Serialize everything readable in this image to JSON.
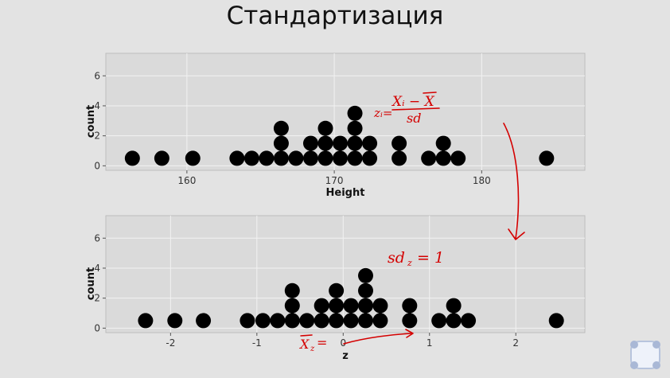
{
  "slide": {
    "title": "Стандартизация"
  },
  "chart_data": [
    {
      "type": "dotplot",
      "xlabel": "Height",
      "ylabel": "count",
      "xlim": [
        154.5,
        187
      ],
      "ylim": [
        -0.3,
        7.5
      ],
      "xticks": [
        160,
        170,
        180
      ],
      "yticks": [
        0,
        2,
        4,
        6
      ],
      "grid": true,
      "stacks": [
        {
          "x": 156.3,
          "count": 1
        },
        {
          "x": 158.3,
          "count": 1
        },
        {
          "x": 160.4,
          "count": 1
        },
        {
          "x": 163.4,
          "count": 1
        },
        {
          "x": 164.4,
          "count": 1
        },
        {
          "x": 165.4,
          "count": 1
        },
        {
          "x": 166.4,
          "count": 3
        },
        {
          "x": 167.4,
          "count": 1
        },
        {
          "x": 168.4,
          "count": 2
        },
        {
          "x": 169.4,
          "count": 3
        },
        {
          "x": 170.4,
          "count": 2
        },
        {
          "x": 171.4,
          "count": 4
        },
        {
          "x": 172.4,
          "count": 2
        },
        {
          "x": 174.4,
          "count": 2
        },
        {
          "x": 176.4,
          "count": 1
        },
        {
          "x": 177.4,
          "count": 2
        },
        {
          "x": 178.4,
          "count": 1
        },
        {
          "x": 184.4,
          "count": 1
        }
      ]
    },
    {
      "type": "dotplot",
      "xlabel": "z",
      "ylabel": "count",
      "xlim": [
        -2.75,
        2.8
      ],
      "ylim": [
        -0.3,
        7.5
      ],
      "xticks": [
        -2,
        -1,
        0,
        1,
        2
      ],
      "yticks": [
        0,
        2,
        4,
        6
      ],
      "grid": true,
      "stacks": [
        {
          "x": -2.29,
          "count": 1
        },
        {
          "x": -1.95,
          "count": 1
        },
        {
          "x": -1.62,
          "count": 1
        },
        {
          "x": -1.11,
          "count": 1
        },
        {
          "x": -0.93,
          "count": 1
        },
        {
          "x": -0.76,
          "count": 1
        },
        {
          "x": -0.59,
          "count": 3
        },
        {
          "x": -0.42,
          "count": 1
        },
        {
          "x": -0.25,
          "count": 2
        },
        {
          "x": -0.08,
          "count": 3
        },
        {
          "x": 0.09,
          "count": 2
        },
        {
          "x": 0.26,
          "count": 4
        },
        {
          "x": 0.43,
          "count": 2
        },
        {
          "x": 0.77,
          "count": 2
        },
        {
          "x": 1.11,
          "count": 1
        },
        {
          "x": 1.28,
          "count": 2
        },
        {
          "x": 1.45,
          "count": 1
        },
        {
          "x": 2.47,
          "count": 1
        }
      ]
    }
  ],
  "annotations": {
    "formula_lhs": "zᵢ=",
    "formula_num": "Xᵢ − X",
    "formula_den": "sd",
    "sd_note": "sd",
    "sd_sub": "z",
    "sd_rhs": "= 1",
    "mean_note": "X",
    "mean_sub": "z",
    "mean_rhs": "="
  },
  "colors": {
    "ink": "#d40000",
    "dot": "#000000",
    "panel": "#dadada",
    "background": "#e3e3e3"
  },
  "icons": {
    "nav": "presentation-nav-icon"
  }
}
